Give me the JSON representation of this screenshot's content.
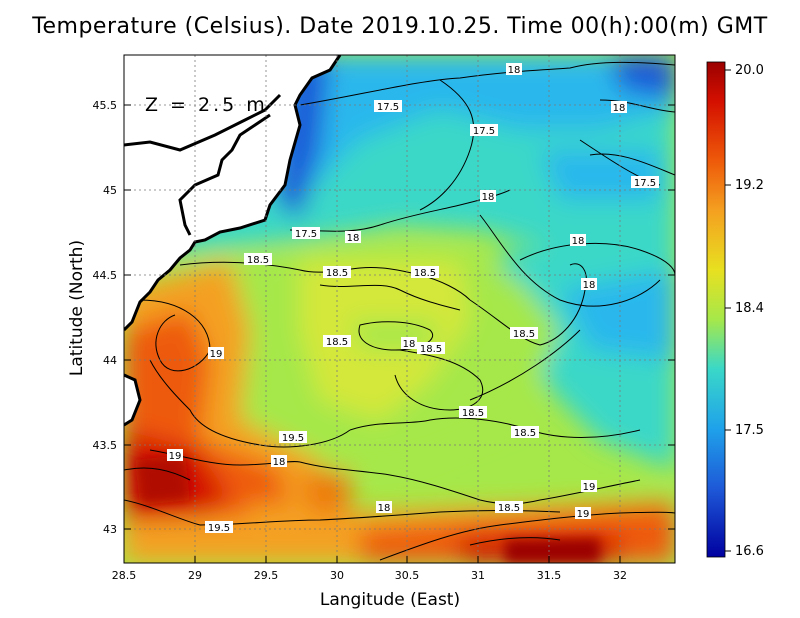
{
  "header": {
    "title": "Temperature (Celsius). Date 2019.10.25. Time 00(h):00(m) GMT"
  },
  "plot": {
    "depth_label": "Z = 2.5 m",
    "xlabel": "Langitude (East)",
    "ylabel": "Latitude (North)",
    "x_ticks": [
      "28.5",
      "29",
      "29.5",
      "30",
      "30.5",
      "31",
      "31.5",
      "32"
    ],
    "y_ticks": [
      "43",
      "43.5",
      "44",
      "44.5",
      "45",
      "45.5"
    ]
  },
  "colorbar": {
    "ticks": [
      "20.0",
      "19.2",
      "18.4",
      "17.5",
      "16.6"
    ],
    "colors": [
      "#9b0000",
      "#e02000",
      "#f28c1a",
      "#e8e020",
      "#a6e84a",
      "#3ad8c8",
      "#1fa2ea",
      "#1e5ad8",
      "#0000a0"
    ]
  },
  "contour_labels": [
    "18",
    "17.5",
    "17.5",
    "18",
    "17.5",
    "18",
    "17.5",
    "18",
    "18",
    "18.5",
    "18.5",
    "18.5",
    "18",
    "18.5",
    "18.5",
    "18",
    "18.5",
    "19",
    "18.5",
    "19.5",
    "19",
    "18",
    "18.5",
    "18",
    "18.5",
    "19",
    "19",
    "19.5"
  ],
  "colors": {
    "land": "#ffffff",
    "coast": "#000000",
    "grid": "#7a7a7a"
  }
}
